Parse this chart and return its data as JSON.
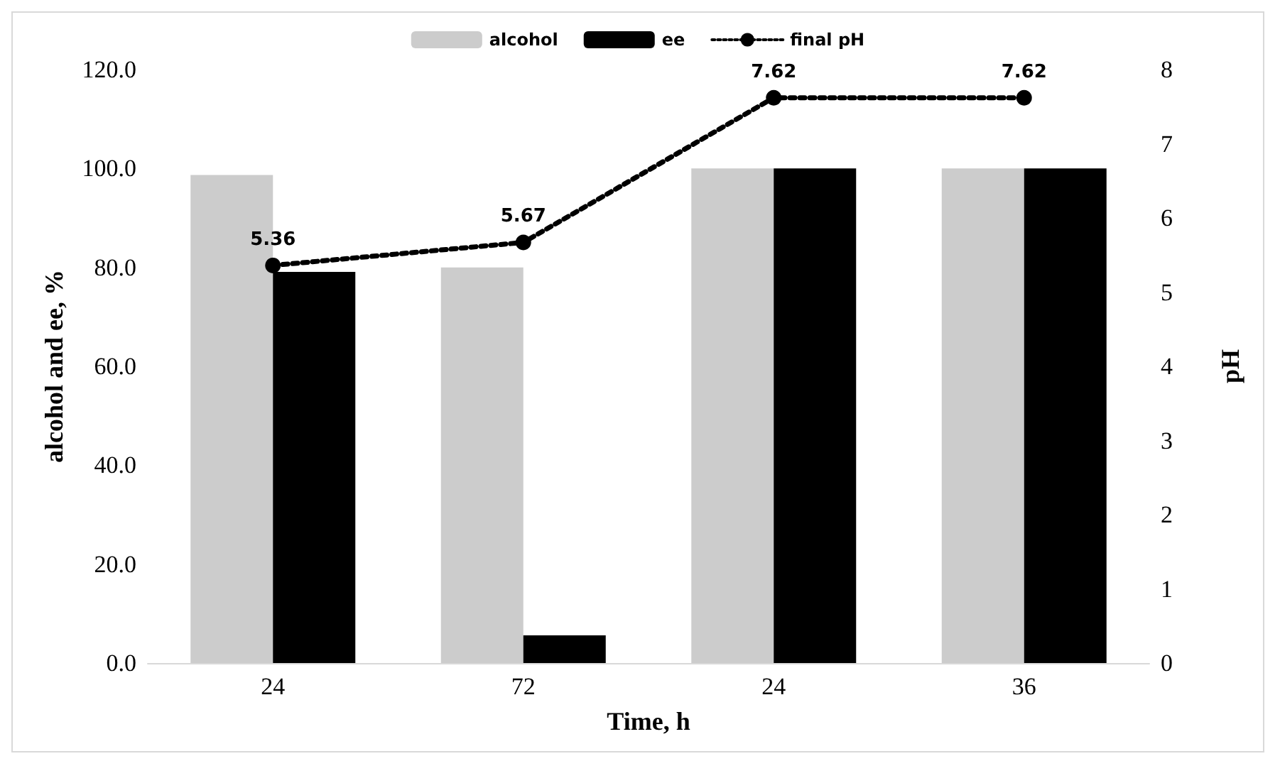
{
  "chart_data": {
    "type": "bar",
    "xlabel": "Time, h",
    "ylabel": "alcohol and ee, %",
    "y2label": "pH",
    "categories": [
      "24",
      "72",
      "24",
      "36"
    ],
    "series": [
      {
        "name": "alcohol",
        "color": "#cccccc",
        "values": [
          98.7,
          80,
          100,
          100
        ]
      },
      {
        "name": "ee",
        "color": "#000000",
        "values": [
          79.1,
          5.6,
          100,
          100
        ]
      },
      {
        "name": "final pH",
        "type": "line",
        "axis": "y2",
        "color": "#000000",
        "values": [
          5.36,
          5.67,
          7.62,
          7.62
        ],
        "data_labels": true,
        "marker": "circle",
        "line_style": "dotted"
      }
    ],
    "ylim": [
      0,
      120
    ],
    "yticks": [
      {
        "value": 0,
        "label": "0.0"
      },
      {
        "value": 20,
        "label": "20.0"
      },
      {
        "value": 40,
        "label": "40.0"
      },
      {
        "value": 60,
        "label": "60.0"
      },
      {
        "value": 80,
        "label": "80.0"
      },
      {
        "value": 100,
        "label": "100.0"
      },
      {
        "value": 120,
        "label": "120.0"
      }
    ],
    "y2lim": [
      0,
      8
    ],
    "y2ticks": [
      0,
      1,
      2,
      3,
      4,
      5,
      6,
      7,
      8
    ],
    "grid": false,
    "legend": "top"
  }
}
